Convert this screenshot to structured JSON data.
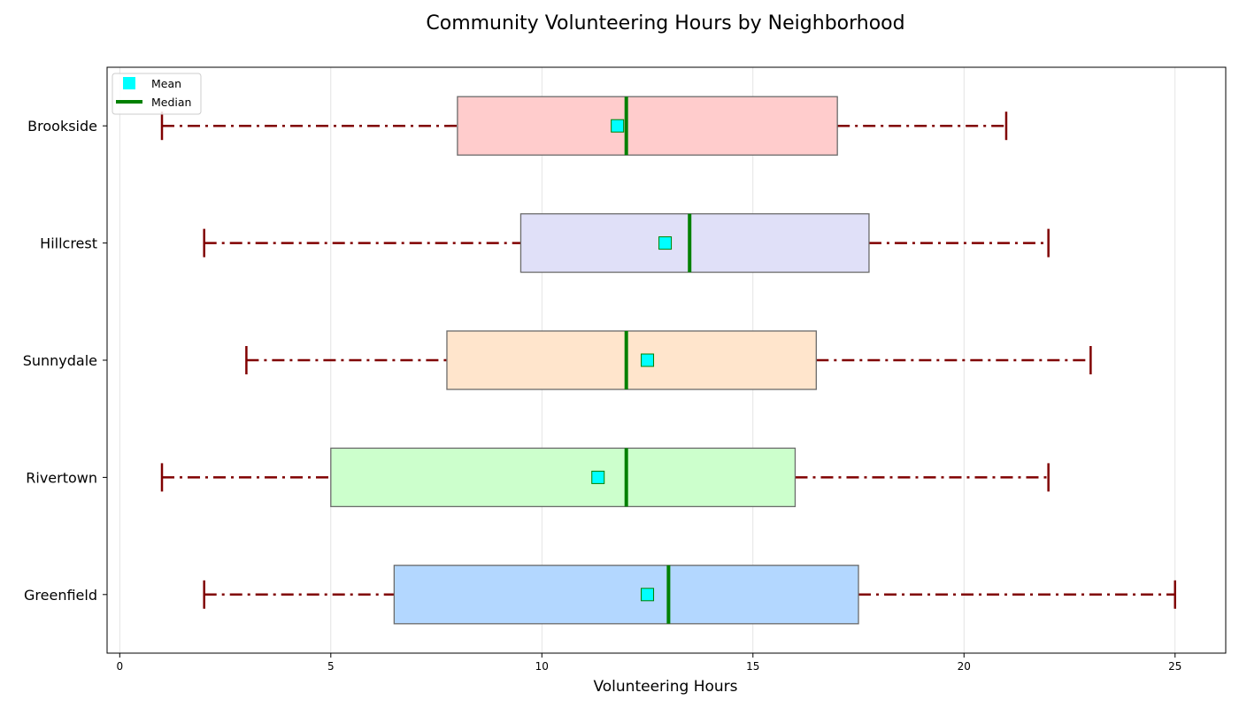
{
  "chart_data": {
    "type": "boxplot",
    "orientation": "horizontal",
    "title": "Community Volunteering Hours by Neighborhood",
    "xlabel": "Volunteering Hours",
    "ylabel": "",
    "xlim": [
      -0.3,
      26.2
    ],
    "xticks": [
      0,
      5,
      10,
      15,
      20,
      25
    ],
    "grid": "vertical",
    "legend": {
      "position": "top-left",
      "entries": [
        {
          "label": "Mean",
          "marker": "square",
          "color": "#00ffff"
        },
        {
          "label": "Median",
          "marker": "line",
          "color": "#008000"
        }
      ]
    },
    "whisker_color": "#800000",
    "median_color": "#008000",
    "mean_color": "#00ffff",
    "categories": [
      "Greenfield",
      "Rivertown",
      "Sunnydale",
      "Hillcrest",
      "Brookside"
    ],
    "boxes": [
      {
        "name": "Greenfield",
        "min": 2,
        "q1": 6.5,
        "median": 13,
        "q3": 17.5,
        "max": 25,
        "mean": 12.5,
        "color": "#b3d7ff"
      },
      {
        "name": "Rivertown",
        "min": 1,
        "q1": 5,
        "median": 12,
        "q3": 16,
        "max": 22,
        "mean": 11.33,
        "color": "#ccffcc"
      },
      {
        "name": "Sunnydale",
        "min": 3,
        "q1": 7.75,
        "median": 12,
        "q3": 16.5,
        "max": 23,
        "mean": 12.5,
        "color": "#ffe5cc"
      },
      {
        "name": "Hillcrest",
        "min": 2,
        "q1": 9.5,
        "median": 13.5,
        "q3": 17.75,
        "max": 22,
        "mean": 12.92,
        "color": "#e0e0f8"
      },
      {
        "name": "Brookside",
        "min": 1,
        "q1": 8,
        "median": 12,
        "q3": 17,
        "max": 21,
        "mean": 11.79,
        "color": "#ffcccc"
      }
    ]
  }
}
